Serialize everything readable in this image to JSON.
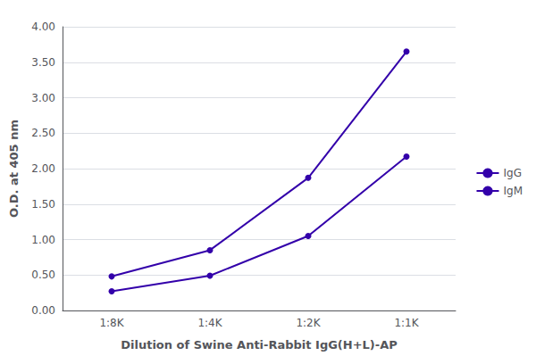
{
  "chart_data": {
    "type": "line",
    "xlabel": "Dilution of Swine Anti-Rabbit IgG(H+L)-AP",
    "ylabel": "O.D. at 405 nm",
    "categories": [
      "1:8K",
      "1:4K",
      "1:2K",
      "1:1K"
    ],
    "series": [
      {
        "name": "IgG",
        "color": "#3300aa",
        "values": [
          0.48,
          0.85,
          1.87,
          3.65
        ],
        "marker": "circle"
      },
      {
        "name": "IgM",
        "color": "#3300aa",
        "values": [
          0.27,
          0.49,
          1.05,
          2.17
        ],
        "marker": "circle"
      }
    ],
    "ylim": [
      0.0,
      4.0
    ],
    "yticks": [
      {
        "value": 0.0,
        "label": "0.00"
      },
      {
        "value": 0.5,
        "label": "0.50"
      },
      {
        "value": 1.0,
        "label": "1.00"
      },
      {
        "value": 1.5,
        "label": "1.50"
      },
      {
        "value": 2.0,
        "label": "2.00"
      },
      {
        "value": 2.5,
        "label": "2.50"
      },
      {
        "value": 3.0,
        "label": "3.00"
      },
      {
        "value": 3.5,
        "label": "3.50"
      },
      {
        "value": 4.0,
        "label": "4.00"
      }
    ],
    "grid": true,
    "legend": "right"
  }
}
